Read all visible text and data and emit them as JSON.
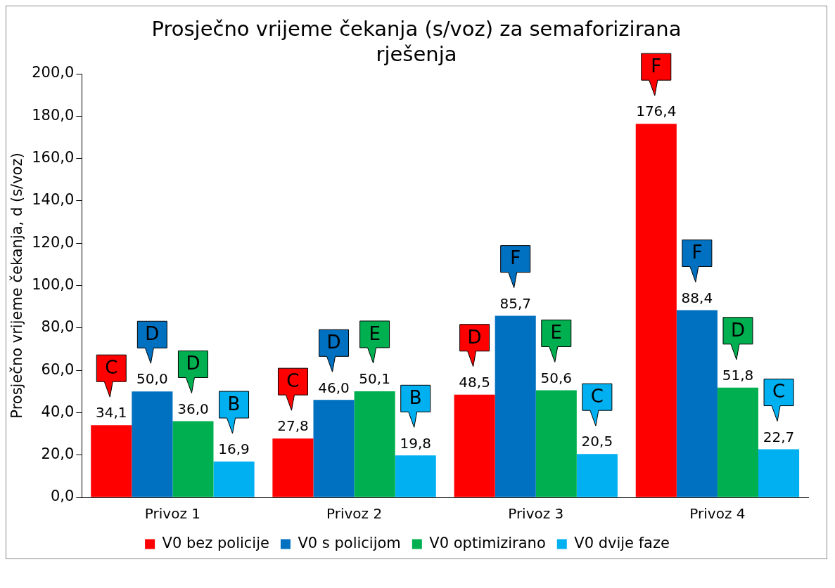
{
  "chart_data": {
    "type": "bar",
    "title": "Prosječno vrijeme čekanja (s/voz) za semaforizirana rješenja",
    "ylabel": "Prosječno vrijeme čekanja, d (s/voz)",
    "categories": [
      "Privoz 1",
      "Privoz 2",
      "Privoz 3",
      "Privoz 4"
    ],
    "series": [
      {
        "name": "V0 bez policije",
        "color": "#ff0000",
        "values": [
          34.1,
          27.8,
          48.5,
          176.4
        ],
        "value_labels": [
          "34,1",
          "27,8",
          "48,5",
          "176,4"
        ]
      },
      {
        "name": "V0 s policijom",
        "color": "#0070c0",
        "values": [
          50.0,
          46.0,
          85.7,
          88.4
        ],
        "value_labels": [
          "50,0",
          "46,0",
          "85,7",
          "88,4"
        ]
      },
      {
        "name": "V0 optimizirano",
        "color": "#00b050",
        "values": [
          36.0,
          50.1,
          50.6,
          51.8
        ],
        "value_labels": [
          "36,0",
          "50,1",
          "50,6",
          "51,8"
        ]
      },
      {
        "name": "V0 dvije faze",
        "color": "#00b0f0",
        "values": [
          16.9,
          19.8,
          20.5,
          22.7
        ],
        "value_labels": [
          "16,9",
          "19,8",
          "20,5",
          "22,7"
        ]
      }
    ],
    "ylim": [
      0,
      200
    ],
    "yticks": [
      {
        "value": 0,
        "label": "0,0"
      },
      {
        "value": 20,
        "label": "20,0"
      },
      {
        "value": 40,
        "label": "40,0"
      },
      {
        "value": 60,
        "label": "60,0"
      },
      {
        "value": 80,
        "label": "80,0"
      },
      {
        "value": 100,
        "label": "100,0"
      },
      {
        "value": 120,
        "label": "120,0"
      },
      {
        "value": 140,
        "label": "140,0"
      },
      {
        "value": 160,
        "label": "160,0"
      },
      {
        "value": 180,
        "label": "180,0"
      },
      {
        "value": 200,
        "label": "200,0"
      }
    ],
    "grid": false,
    "legend": "bottom",
    "annotations": [
      "C",
      "D",
      "D",
      "B",
      "C",
      "D",
      "E",
      "B",
      "D",
      "F",
      "E",
      "C",
      "F",
      "F",
      "D",
      "C"
    ]
  }
}
